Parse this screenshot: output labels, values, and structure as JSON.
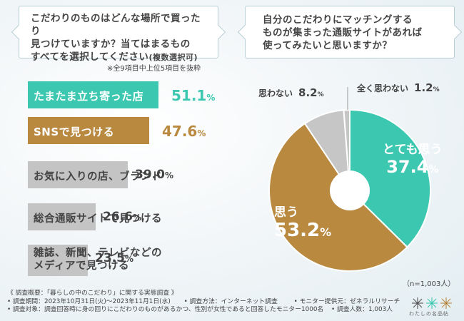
{
  "question_left": {
    "line1": "こだわりのものはどんな場所で買ったり",
    "line2": "見つけていますか？当てはまるもの",
    "line3": "すべてを選択してください",
    "line3_small": "(複数選択可)"
  },
  "question_right": {
    "line1": "自分のこだわりにマッチングする",
    "line2": "ものが集まった通販サイトがあれば",
    "line3": "使ってみたいと思いますか？"
  },
  "bar_note": "※全9項目中上位5項目を抜粋",
  "colors": {
    "teal": "#3cc8b0",
    "brown": "#b8893f",
    "gray": "#c4c4c4",
    "light_gray": "#c6c6c6"
  },
  "chart_data": [
    {
      "type": "bar",
      "orientation": "horizontal",
      "categories": [
        "たまたま立ち寄った店",
        "SNSで見つける",
        "お気に入りの店、ブランド",
        "総合通販サイトで見つける",
        "雑誌、新聞、テレビなどのメディアで見つける"
      ],
      "values": [
        51.1,
        47.6,
        39.0,
        26.6,
        23.5
      ],
      "value_labels": [
        "51.1",
        "47.6",
        "39.0",
        "26.6",
        "23.5"
      ],
      "unit": "%",
      "label_lines": [
        [
          "たまたま立ち寄った店"
        ],
        [
          "SNSで見つける"
        ],
        [
          "お気に入りの店、ブランド"
        ],
        [
          "総合通販サイトで見つける"
        ],
        [
          "雑誌、新聞、テレビなどの",
          "メディアで見つける"
        ]
      ],
      "bar_colors": [
        "#3cc8b0",
        "#b8893f",
        "#c4c4c4",
        "#c4c4c4",
        "#c4c4c4"
      ],
      "label_colors": [
        "#ffffff",
        "#ffffff",
        "#444444",
        "#444444",
        "#444444"
      ],
      "value_colors": [
        "#3cc8b0",
        "#b8893f",
        "#444444",
        "#444444",
        "#444444"
      ],
      "xlim": [
        0,
        51.1
      ]
    },
    {
      "type": "pie",
      "style": "donut",
      "categories": [
        "とても思う",
        "思う",
        "思わない",
        "全く思わない"
      ],
      "values": [
        37.4,
        53.2,
        8.2,
        1.2
      ],
      "value_labels": [
        "37.4",
        "53.2",
        "8.2",
        "1.2"
      ],
      "unit": "%",
      "colors": [
        "#3cc8b0",
        "#b8893f",
        "#c6c6c6",
        "#c6c6c6"
      ],
      "label_colors": [
        "#ffffff",
        "#ffffff",
        "#444444",
        "#444444"
      ],
      "note": "（n=1,003人）"
    }
  ],
  "footer": {
    "line1": "《 調査概要：「暮らしの中のこだわり」に関する実態調査 》",
    "line2a": "• 調査期間：2023年10月31日(火)～2023年11月1日(水)",
    "line2b": "• 調査方法：インターネット調査",
    "line2c": "• モニター提供元：ゼネラルリサーチ",
    "line3a": "• 調査対象：調査回答時に身の回りにこだわりのものがあるかつ、性別が女性であると回答したモニター1000名",
    "line3b": "• 調査人数：1,003人"
  },
  "logo": {
    "text": "わたしの名品帖",
    "icon": "snowflake-logo-icon"
  }
}
